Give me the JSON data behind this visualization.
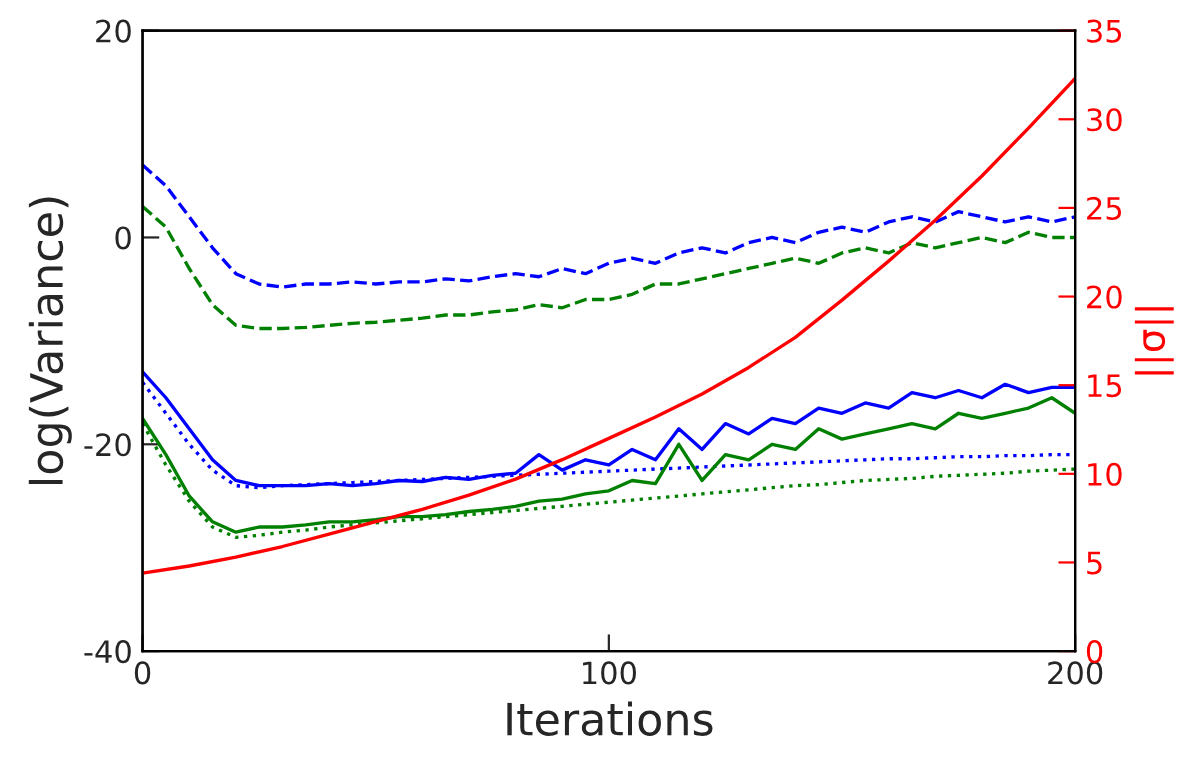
{
  "chart_data": {
    "type": "line",
    "xlabel": "Iterations",
    "ylabel": "log(Variance)",
    "y2label": "||σ||",
    "xlim": [
      0,
      200
    ],
    "xticks": [
      0,
      100,
      200
    ],
    "ylim": [
      -40,
      20
    ],
    "yticks": [
      -40,
      -20,
      0,
      20
    ],
    "y2lim": [
      0,
      35
    ],
    "y2ticks": [
      0,
      5,
      10,
      15,
      20,
      25,
      30,
      35
    ],
    "grid": false,
    "legend": false,
    "x": [
      0,
      5,
      10,
      15,
      20,
      25,
      30,
      35,
      40,
      45,
      50,
      55,
      60,
      65,
      70,
      75,
      80,
      85,
      90,
      95,
      100,
      105,
      110,
      115,
      120,
      125,
      130,
      135,
      140,
      145,
      150,
      155,
      160,
      165,
      170,
      175,
      180,
      185,
      190,
      195,
      200
    ],
    "series": [
      {
        "color": "#0000ff",
        "line_style": "dashed",
        "values": [
          7,
          5,
          2,
          -1,
          -3.5,
          -4.5,
          -4.8,
          -4.5,
          -4.5,
          -4.3,
          -4.5,
          -4.3,
          -4.3,
          -4,
          -4.2,
          -3.8,
          -3.5,
          -3.8,
          -3,
          -3.5,
          -2.5,
          -2,
          -2.5,
          -1.5,
          -1,
          -1.5,
          -0.5,
          0,
          -0.5,
          0.5,
          1,
          0.5,
          1.5,
          2,
          1.5,
          2.5,
          2,
          1.5,
          2,
          1.5,
          2
        ]
      },
      {
        "color": "#008000",
        "line_style": "dashed",
        "values": [
          3,
          1,
          -3,
          -6.5,
          -8.5,
          -8.8,
          -8.8,
          -8.7,
          -8.5,
          -8.3,
          -8.2,
          -8,
          -7.8,
          -7.5,
          -7.5,
          -7.2,
          -7,
          -6.5,
          -6.8,
          -6,
          -6,
          -5.5,
          -4.5,
          -4.5,
          -4,
          -3.5,
          -3,
          -2.5,
          -2,
          -2.5,
          -1.5,
          -1,
          -1.5,
          -0.5,
          -1,
          -0.5,
          0,
          -0.5,
          0.5,
          0,
          0
        ]
      },
      {
        "color": "#0000ff",
        "line_style": "solid",
        "values": [
          -13,
          -15.5,
          -18.5,
          -21.5,
          -23.5,
          -24,
          -24,
          -24,
          -23.8,
          -24,
          -23.8,
          -23.5,
          -23.6,
          -23.2,
          -23.4,
          -23,
          -22.8,
          -21,
          -22.5,
          -21.5,
          -22,
          -20.5,
          -21.5,
          -18.5,
          -20.5,
          -18,
          -19,
          -17.5,
          -18,
          -16.5,
          -17,
          -16,
          -16.5,
          -15,
          -15.5,
          -14.8,
          -15.5,
          -14.2,
          -15,
          -14.5,
          -14.5
        ]
      },
      {
        "color": "#0000ff",
        "line_style": "dotted",
        "values": [
          -14,
          -17,
          -20,
          -22.5,
          -24,
          -24.2,
          -24,
          -23.9,
          -23.8,
          -23.7,
          -23.6,
          -23.5,
          -23.4,
          -23.3,
          -23.2,
          -23.1,
          -23,
          -22.9,
          -22.8,
          -22.7,
          -22.6,
          -22.5,
          -22.4,
          -22.3,
          -22.2,
          -22.1,
          -22,
          -21.9,
          -21.8,
          -21.7,
          -21.6,
          -21.5,
          -21.4,
          -21.4,
          -21.3,
          -21.2,
          -21.2,
          -21.1,
          -21.1,
          -21,
          -21
        ]
      },
      {
        "color": "#008000",
        "line_style": "solid",
        "values": [
          -17.5,
          -21,
          -25,
          -27.5,
          -28.5,
          -28,
          -28,
          -27.8,
          -27.5,
          -27.5,
          -27.3,
          -27,
          -27,
          -26.8,
          -26.5,
          -26.3,
          -26,
          -25.5,
          -25.3,
          -24.8,
          -24.5,
          -23.5,
          -23.8,
          -20,
          -23.5,
          -21,
          -21.5,
          -20,
          -20.5,
          -18.5,
          -19.5,
          -19,
          -18.5,
          -18,
          -18.5,
          -17,
          -17.5,
          -17,
          -16.5,
          -15.5,
          -17
        ]
      },
      {
        "color": "#008000",
        "line_style": "dotted",
        "values": [
          -18,
          -22,
          -25.5,
          -28,
          -29,
          -28.8,
          -28.5,
          -28.3,
          -28,
          -27.8,
          -27.6,
          -27.4,
          -27.2,
          -27,
          -26.8,
          -26.6,
          -26.4,
          -26.2,
          -26,
          -25.8,
          -25.6,
          -25.4,
          -25.2,
          -25,
          -24.8,
          -24.6,
          -24.4,
          -24.2,
          -24,
          -23.9,
          -23.7,
          -23.5,
          -23.4,
          -23.3,
          -23.1,
          -23,
          -22.9,
          -22.8,
          -22.6,
          -22.5,
          -22.4
        ]
      },
      {
        "color": "#ff0000",
        "line_style": "solid",
        "axis": "y2",
        "x": [
          0,
          10,
          20,
          30,
          40,
          50,
          60,
          70,
          80,
          90,
          100,
          110,
          120,
          130,
          140,
          150,
          160,
          170,
          180,
          190,
          200
        ],
        "values": [
          4.4,
          4.8,
          5.3,
          5.9,
          6.6,
          7.3,
          8,
          8.8,
          9.7,
          10.8,
          12,
          13.2,
          14.5,
          16,
          17.7,
          19.8,
          22,
          24.3,
          26.8,
          29.5,
          32.3
        ]
      }
    ]
  }
}
